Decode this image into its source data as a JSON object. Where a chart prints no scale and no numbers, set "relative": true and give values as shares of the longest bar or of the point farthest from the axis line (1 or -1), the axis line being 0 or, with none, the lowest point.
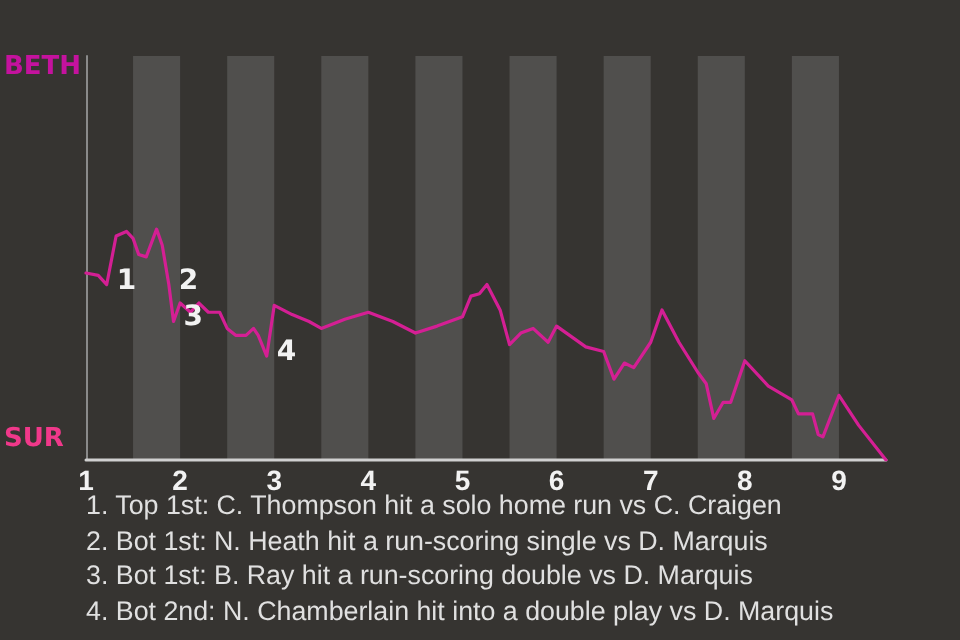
{
  "chart_data": {
    "type": "line",
    "relative": true,
    "xlim": [
      1,
      9.5
    ],
    "xticks": [
      1,
      2,
      3,
      4,
      5,
      6,
      7,
      8,
      9
    ],
    "marker": "none",
    "line_style": "solid",
    "series": [
      {
        "color": "#d41f94",
        "x": [
          1,
          1.13,
          1.22,
          1.32,
          1.43,
          1.5,
          1.56,
          1.64,
          1.75,
          1.81,
          1.88,
          1.93,
          2,
          2.11,
          2.2,
          2.3,
          2.42,
          2.5,
          2.59,
          2.7,
          2.78,
          2.83,
          2.92,
          3,
          3.19,
          3.37,
          3.5,
          3.75,
          4,
          4.26,
          4.5,
          4.73,
          5,
          5.09,
          5.18,
          5.26,
          5.4,
          5.5,
          5.62,
          5.75,
          5.91,
          6,
          6.31,
          6.5,
          6.61,
          6.72,
          6.82,
          7,
          7.12,
          7.3,
          7.5,
          7.59,
          7.67,
          7.77,
          7.85,
          8,
          8.25,
          8.5,
          8.57,
          8.72,
          8.78,
          8.83,
          9,
          9.21,
          9.5
        ],
        "values": [
          0.81,
          0.8,
          0.76,
          0.97,
          0.99,
          0.96,
          0.89,
          0.88,
          1,
          0.93,
          0.76,
          0.6,
          0.68,
          0.64,
          0.68,
          0.64,
          0.64,
          0.57,
          0.54,
          0.54,
          0.57,
          0.54,
          0.45,
          0.67,
          0.63,
          0.6,
          0.57,
          0.61,
          0.64,
          0.6,
          0.55,
          0.58,
          0.62,
          0.71,
          0.72,
          0.76,
          0.65,
          0.5,
          0.55,
          0.57,
          0.51,
          0.58,
          0.49,
          0.47,
          0.35,
          0.42,
          0.4,
          0.51,
          0.65,
          0.51,
          0.38,
          0.33,
          0.18,
          0.25,
          0.25,
          0.43,
          0.32,
          0.26,
          0.2,
          0.2,
          0.11,
          0.1,
          0.28,
          0.15,
          0
        ]
      }
    ],
    "bands": [
      {
        "axis": "x",
        "from": 1.5,
        "to": 2,
        "color": "#504f4d"
      },
      {
        "axis": "x",
        "from": 2.5,
        "to": 3,
        "color": "#504f4d"
      },
      {
        "axis": "x",
        "from": 3.5,
        "to": 4,
        "color": "#504f4d"
      },
      {
        "axis": "x",
        "from": 4.5,
        "to": 5,
        "color": "#504f4d"
      },
      {
        "axis": "x",
        "from": 5.5,
        "to": 6,
        "color": "#504f4d"
      },
      {
        "axis": "x",
        "from": 6.5,
        "to": 7,
        "color": "#504f4d"
      },
      {
        "axis": "x",
        "from": 7.5,
        "to": 8,
        "color": "#504f4d"
      },
      {
        "axis": "x",
        "from": 8.5,
        "to": 9,
        "color": "#504f4d"
      }
    ],
    "annotations": [
      "BETH",
      "SUR",
      {
        "text": "1",
        "x": 1.22,
        "y": 0.76
      },
      {
        "text": "2",
        "x": 1.88,
        "y": 0.76
      },
      {
        "text": "3",
        "x": 1.93,
        "y": 0.6
      },
      {
        "text": "4",
        "x": 2.92,
        "y": 0.45
      },
      "1. Top 1st: C. Thompson hit a solo home run vs C. Craigen",
      "2. Bot 1st: N. Heath hit a run-scoring single vs D. Marquis",
      "3. Bot 1st: B. Ray hit a run-scoring double vs D. Marquis",
      "4. Bot 2nd: N. Chamberlain hit into a double play vs D. Marquis"
    ]
  }
}
